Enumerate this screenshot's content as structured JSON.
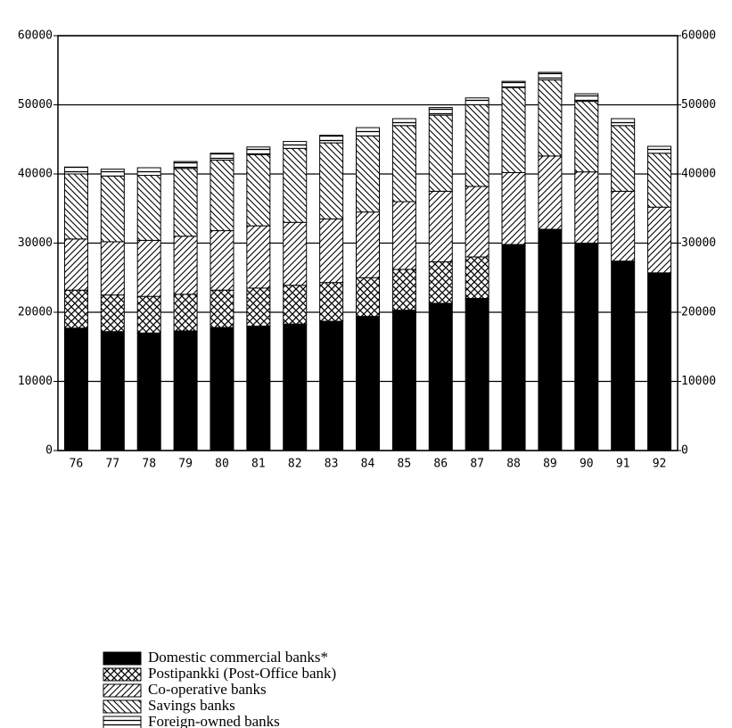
{
  "chart_data": {
    "type": "stacked_bar",
    "categories": [
      "76",
      "77",
      "78",
      "79",
      "80",
      "81",
      "82",
      "83",
      "84",
      "85",
      "86",
      "87",
      "88",
      "89",
      "90",
      "91",
      "92"
    ],
    "series": [
      {
        "name": "Domestic commercial banks*",
        "color": "#000000",
        "pattern": "solid",
        "values": [
          17700,
          17200,
          17000,
          17300,
          17800,
          18000,
          18300,
          18700,
          19400,
          20300,
          21300,
          22000,
          29800,
          32000,
          30000,
          27400,
          25700
        ]
      },
      {
        "name": "Postipankki (Post-Office bank)",
        "color": "#000000",
        "pattern": "crosshatch",
        "values": [
          5500,
          5300,
          5300,
          5300,
          5400,
          5500,
          5600,
          5600,
          5600,
          5900,
          6000,
          6000,
          0,
          0,
          0,
          0,
          0
        ]
      },
      {
        "name": "Co-operative banks",
        "color": "#000000",
        "pattern": "forward-diagonal",
        "values": [
          7400,
          7700,
          8100,
          8400,
          8600,
          9000,
          9100,
          9200,
          9500,
          9800,
          10200,
          10200,
          10400,
          10600,
          10300,
          10100,
          9500
        ]
      },
      {
        "name": "Savings banks",
        "color": "#000000",
        "pattern": "back-diagonal",
        "values": [
          9400,
          9500,
          9400,
          9800,
          10200,
          10300,
          10700,
          11000,
          11000,
          11000,
          11000,
          11800,
          12300,
          11000,
          10200,
          9500,
          7800
        ]
      },
      {
        "name": "Foreign-owned banks",
        "color": "#000000",
        "pattern": "horizontal",
        "values": [
          1000,
          1000,
          1100,
          1000,
          1000,
          1100,
          1000,
          1100,
          1200,
          1000,
          1100,
          1000,
          900,
          1100,
          1100,
          1000,
          1000
        ]
      }
    ],
    "ylim": [
      0,
      60000
    ],
    "yticks": [
      0,
      10000,
      20000,
      30000,
      40000,
      50000,
      60000
    ],
    "y2lim": [
      0,
      60000
    ],
    "y2ticks": [
      0,
      10000,
      20000,
      30000,
      40000,
      50000,
      60000
    ],
    "grid": true
  }
}
